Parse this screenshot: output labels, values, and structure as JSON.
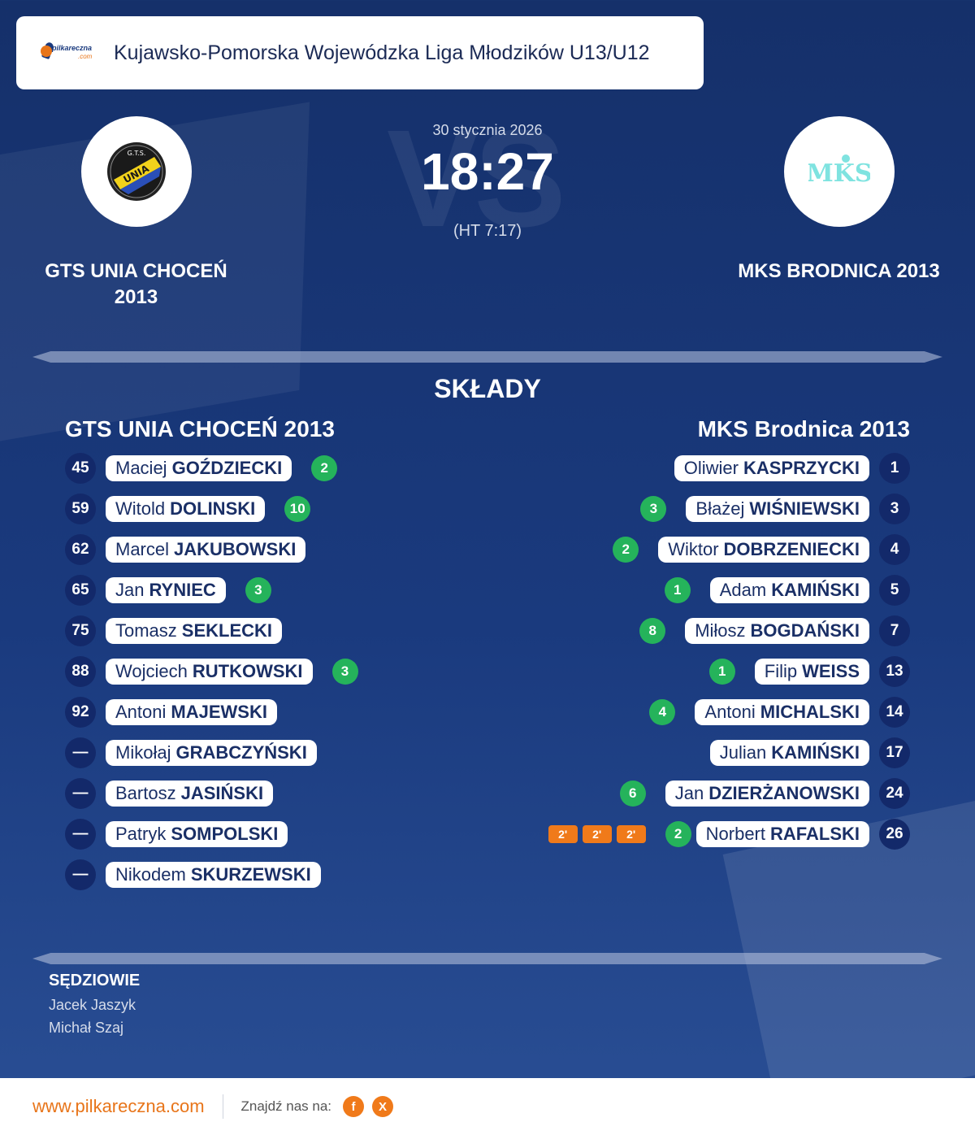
{
  "header": {
    "logo_text": "pilkareczna",
    "logo_sub": ".com",
    "title": "Kujawsko-Pomorska Wojewódzka Liga Młodzików U13/U12"
  },
  "match": {
    "date": "30 stycznia 2026",
    "score": "18:27",
    "halftime": "(HT 7:17)",
    "vs_text": "VS",
    "home": {
      "name_line1": "GTS UNIA CHOCEŃ",
      "name_line2": "2013",
      "logo_text": "UNIA",
      "logo_top": "G.T.S."
    },
    "away": {
      "name": "MKS BRODNICA 2013",
      "logo_text": "MKS"
    }
  },
  "lineups": {
    "title": "SKŁADY",
    "home_title": "GTS UNIA CHOCEŃ 2013",
    "away_title": "MKS Brodnica 2013",
    "home": [
      {
        "num": "45",
        "first": "Maciej",
        "last": "GOŹDZIECKI",
        "goals": "2"
      },
      {
        "num": "59",
        "first": "Witold",
        "last": "DOLINSKI",
        "goals": "10"
      },
      {
        "num": "62",
        "first": "Marcel",
        "last": "JAKUBOWSKI",
        "goals": ""
      },
      {
        "num": "65",
        "first": "Jan",
        "last": "RYNIEC",
        "goals": "3"
      },
      {
        "num": "75",
        "first": "Tomasz",
        "last": "SEKLECKI",
        "goals": ""
      },
      {
        "num": "88",
        "first": "Wojciech",
        "last": "RUTKOWSKI",
        "goals": "3"
      },
      {
        "num": "92",
        "first": "Antoni",
        "last": "MAJEWSKI",
        "goals": ""
      },
      {
        "num": "—",
        "first": "Mikołaj",
        "last": "GRABCZYŃSKI",
        "goals": ""
      },
      {
        "num": "—",
        "first": "Bartosz",
        "last": "JASIŃSKI",
        "goals": ""
      },
      {
        "num": "—",
        "first": "Patryk",
        "last": "SOMPOLSKI",
        "goals": ""
      },
      {
        "num": "—",
        "first": "Nikodem",
        "last": "SKURZEWSKI",
        "goals": ""
      }
    ],
    "away": [
      {
        "num": "1",
        "first": "Oliwier",
        "last": "KASPRZYCKI",
        "goals": "",
        "susp": []
      },
      {
        "num": "3",
        "first": "Błażej",
        "last": "WIŚNIEWSKI",
        "goals": "3",
        "susp": []
      },
      {
        "num": "4",
        "first": "Wiktor",
        "last": "DOBRZENIECKI",
        "goals": "2",
        "susp": []
      },
      {
        "num": "5",
        "first": "Adam",
        "last": "KAMIŃSKI",
        "goals": "1",
        "susp": []
      },
      {
        "num": "7",
        "first": "Miłosz",
        "last": "BOGDAŃSKI",
        "goals": "8",
        "susp": []
      },
      {
        "num": "13",
        "first": "Filip",
        "last": "WEISS",
        "goals": "1",
        "susp": []
      },
      {
        "num": "14",
        "first": "Antoni",
        "last": "MICHALSKI",
        "goals": "4",
        "susp": []
      },
      {
        "num": "17",
        "first": "Julian",
        "last": "KAMIŃSKI",
        "goals": "",
        "susp": []
      },
      {
        "num": "24",
        "first": "Jan",
        "last": "DZIERŻANOWSKI",
        "goals": "6",
        "susp": []
      },
      {
        "num": "26",
        "first": "Norbert",
        "last": "RAFALSKI",
        "goals": "2",
        "susp": [
          "2'",
          "2'",
          "2'"
        ]
      }
    ]
  },
  "referees": {
    "title": "SĘDZIOWIE",
    "names": [
      "Jacek Jaszyk",
      "Michał Szaj"
    ]
  },
  "footer": {
    "url": "www.pilkareczna.com",
    "find_label": "Znajdź nas na:",
    "social": [
      {
        "icon": "facebook-icon",
        "glyph": "f"
      },
      {
        "icon": "x-icon",
        "glyph": "X"
      }
    ]
  },
  "colors": {
    "accent": "#e8751a",
    "goal": "#25b35b",
    "background": "#1a3a7e"
  }
}
